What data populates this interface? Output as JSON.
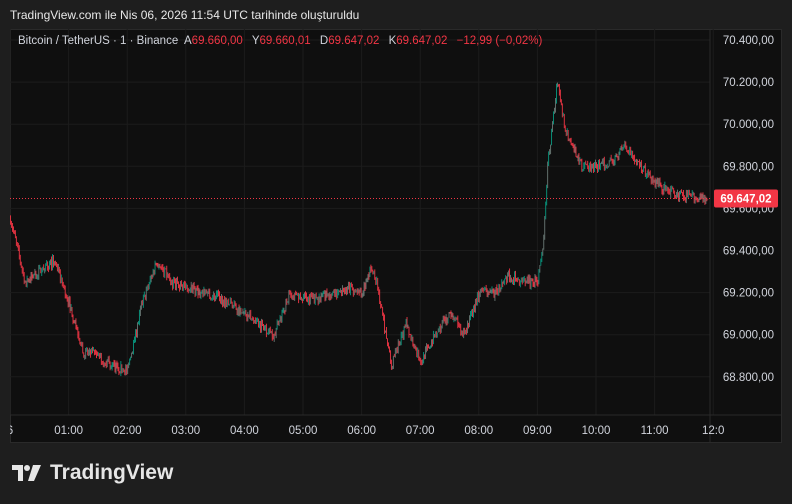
{
  "header": {
    "title": "TradingView.com ile Nis 06, 2026 11:54 UTC tarihinde oluşturuldu"
  },
  "legend": {
    "symbol": "Bitcoin / TetherUS · 1 · Binance",
    "open_label": "A",
    "open": "69.660,00",
    "high_label": "Y",
    "high": "69.660,01",
    "low_label": "D",
    "low": "69.647,02",
    "close_label": "K",
    "close": "69.647,02",
    "change": "−12,99 (−0,02%)"
  },
  "colors": {
    "up": "#089981",
    "down": "#f23645",
    "up_muted": "#6b7a76",
    "price_label": "#f23645"
  },
  "logo": {
    "text": "TradingView"
  },
  "chart_data": {
    "type": "candlestick",
    "interval": "1 minute",
    "ylim": [
      68700,
      70420
    ],
    "y_ticks": [
      "70.400,00",
      "70.200,00",
      "70.000,00",
      "69.800,00",
      "69.600,00",
      "69.400,00",
      "69.200,00",
      "69.000,00",
      "68.800,00"
    ],
    "y_tick_values": [
      70400,
      70200,
      70000,
      69800,
      69600,
      69400,
      69200,
      69000,
      68800
    ],
    "x_ticks": [
      "6",
      "01:00",
      "02:00",
      "03:00",
      "04:00",
      "05:00",
      "06:00",
      "07:00",
      "08:00",
      "09:00",
      "10:00",
      "11:00",
      "12:0"
    ],
    "x_tick_hours": [
      0,
      1,
      2,
      3,
      4,
      5,
      6,
      7,
      8,
      9,
      10,
      11,
      12
    ],
    "last_price": 69647.02,
    "last_price_label": "69.647,02",
    "approx_close_path": [
      [
        "00:00",
        69550
      ],
      [
        "00:15",
        69250
      ],
      [
        "00:30",
        69300
      ],
      [
        "00:45",
        69350
      ],
      [
        "01:00",
        69150
      ],
      [
        "01:15",
        68920
      ],
      [
        "01:30",
        68900
      ],
      [
        "01:45",
        68850
      ],
      [
        "02:00",
        68830
      ],
      [
        "02:15",
        69150
      ],
      [
        "02:30",
        69350
      ],
      [
        "02:45",
        69250
      ],
      [
        "03:00",
        69230
      ],
      [
        "03:15",
        69200
      ],
      [
        "03:30",
        69180
      ],
      [
        "03:45",
        69150
      ],
      [
        "04:00",
        69100
      ],
      [
        "04:15",
        69050
      ],
      [
        "04:30",
        69000
      ],
      [
        "04:45",
        69180
      ],
      [
        "05:00",
        69180
      ],
      [
        "05:15",
        69170
      ],
      [
        "05:30",
        69200
      ],
      [
        "05:45",
        69220
      ],
      [
        "06:00",
        69200
      ],
      [
        "06:10",
        69330
      ],
      [
        "06:15",
        69250
      ],
      [
        "06:30",
        68850
      ],
      [
        "06:45",
        69050
      ],
      [
        "07:00",
        68870
      ],
      [
        "07:15",
        69000
      ],
      [
        "07:30",
        69100
      ],
      [
        "07:45",
        69000
      ],
      [
        "08:00",
        69200
      ],
      [
        "08:15",
        69200
      ],
      [
        "08:30",
        69280
      ],
      [
        "08:45",
        69250
      ],
      [
        "09:00",
        69250
      ],
      [
        "09:05",
        69400
      ],
      [
        "09:10",
        69800
      ],
      [
        "09:15",
        70000
      ],
      [
        "09:20",
        70200
      ],
      [
        "09:25",
        70050
      ],
      [
        "09:30",
        69950
      ],
      [
        "09:45",
        69800
      ],
      [
        "10:00",
        69800
      ],
      [
        "10:15",
        69820
      ],
      [
        "10:30",
        69900
      ],
      [
        "10:45",
        69800
      ],
      [
        "11:00",
        69720
      ],
      [
        "11:15",
        69680
      ],
      [
        "11:30",
        69650
      ],
      [
        "11:45",
        69660
      ],
      [
        "11:54",
        69647
      ]
    ]
  }
}
